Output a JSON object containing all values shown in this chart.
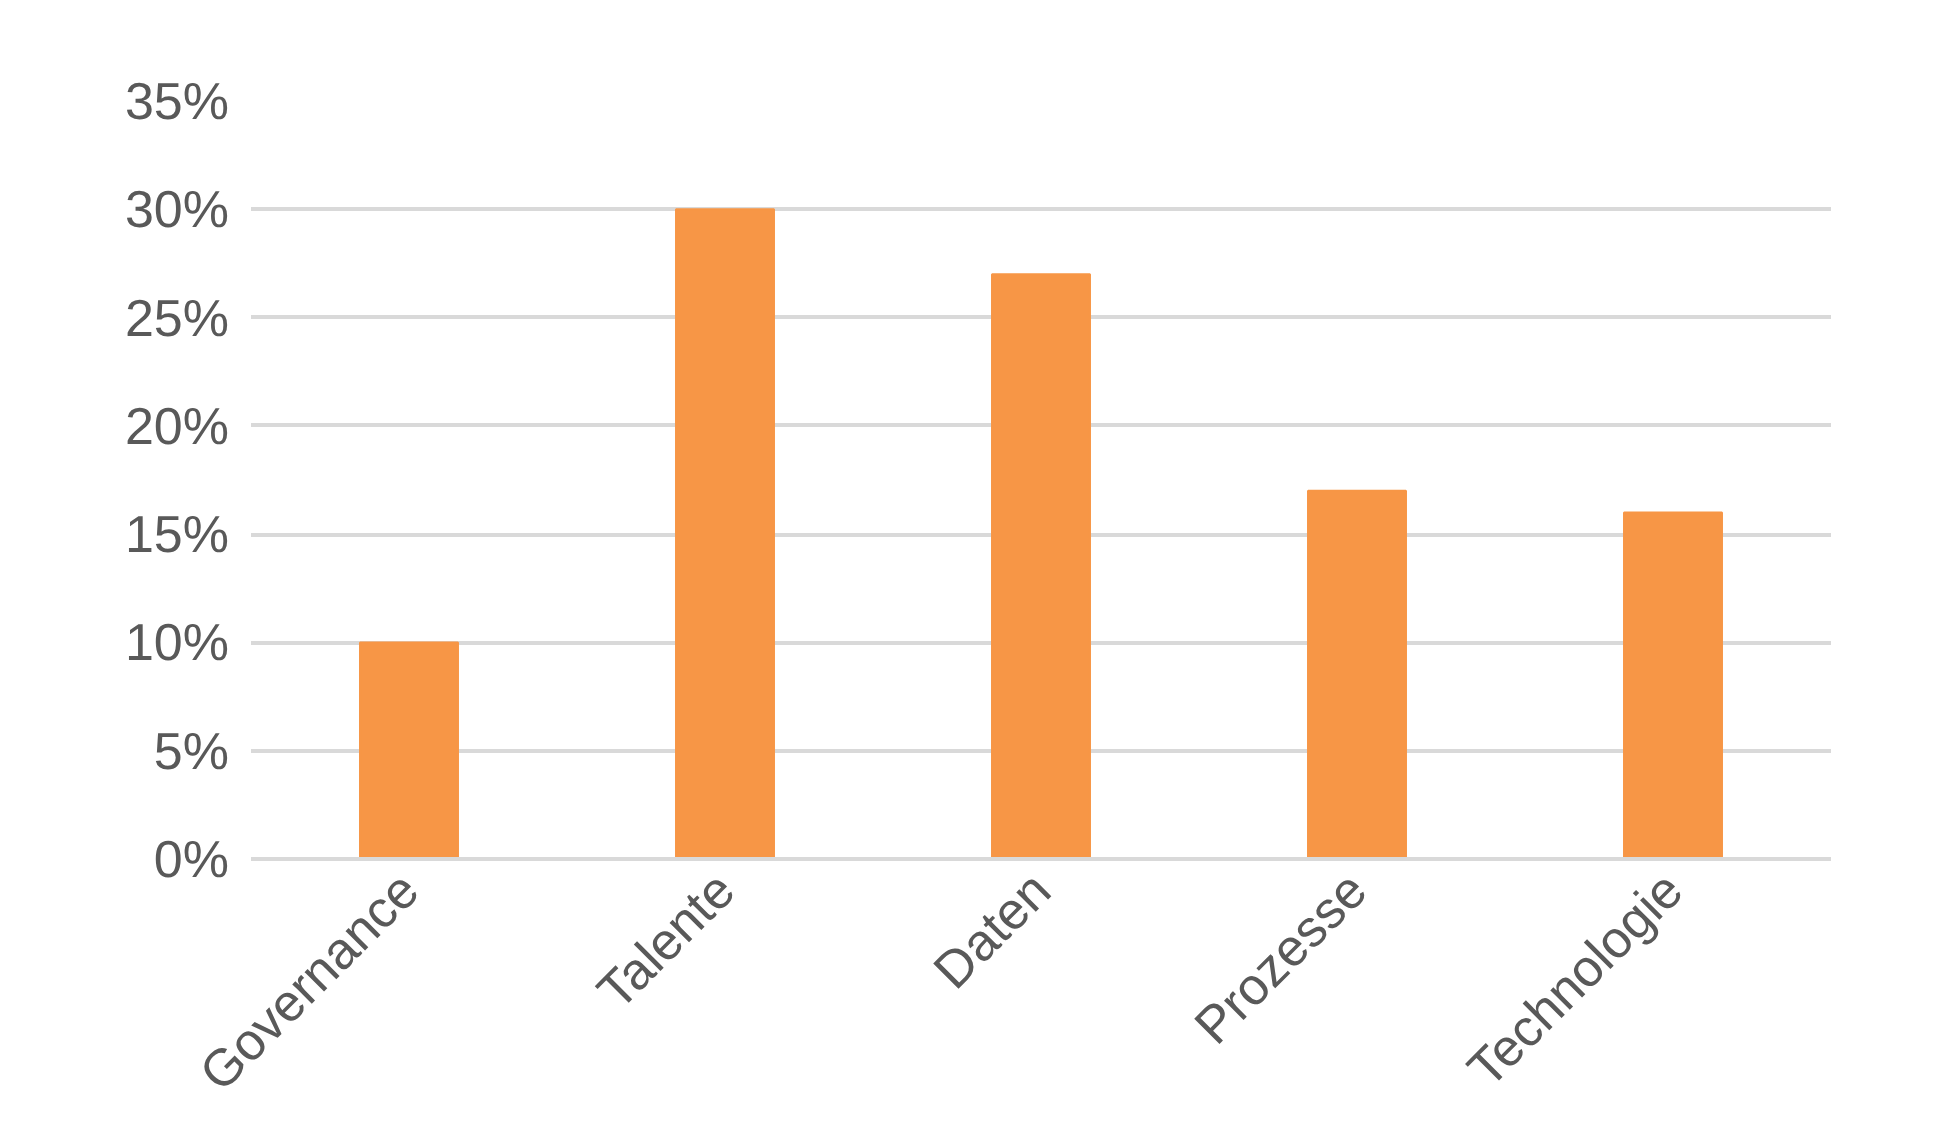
{
  "chart_data": {
    "type": "bar",
    "categories": [
      "Governance",
      "Talente",
      "Daten",
      "Prozesse",
      "Technologie"
    ],
    "values": [
      10,
      30,
      27,
      17,
      16
    ],
    "color": "#f79646",
    "ylim": [
      0,
      35
    ],
    "yticks": [
      {
        "value": 0,
        "label": "0%"
      },
      {
        "value": 5,
        "label": "5%"
      },
      {
        "value": 10,
        "label": "10%"
      },
      {
        "value": 15,
        "label": "15%"
      },
      {
        "value": 20,
        "label": "20%"
      },
      {
        "value": 25,
        "label": "25%"
      },
      {
        "value": 30,
        "label": "30%"
      },
      {
        "value": 35,
        "label": "35%"
      }
    ],
    "grid": "y"
  }
}
